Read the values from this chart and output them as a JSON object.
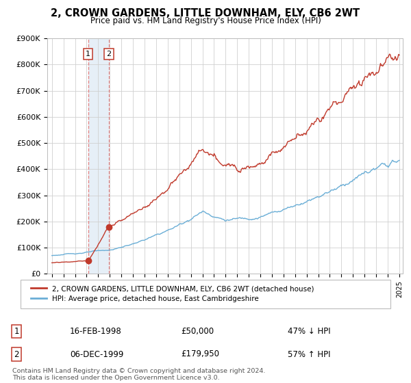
{
  "title": "2, CROWN GARDENS, LITTLE DOWNHAM, ELY, CB6 2WT",
  "subtitle": "Price paid vs. HM Land Registry's House Price Index (HPI)",
  "ylim": [
    0,
    900000
  ],
  "yticks": [
    0,
    100000,
    200000,
    300000,
    400000,
    500000,
    600000,
    700000,
    800000,
    900000
  ],
  "ytick_labels": [
    "£0",
    "£100K",
    "£200K",
    "£300K",
    "£400K",
    "£500K",
    "£600K",
    "£700K",
    "£800K",
    "£900K"
  ],
  "hpi_color": "#6aaed6",
  "price_color": "#c0392b",
  "marker_color": "#c0392b",
  "grid_color": "#d0d0d0",
  "background_color": "#ffffff",
  "legend_label_price": "2, CROWN GARDENS, LITTLE DOWNHAM, ELY, CB6 2WT (detached house)",
  "legend_label_hpi": "HPI: Average price, detached house, East Cambridgeshire",
  "sale1_date": "16-FEB-1998",
  "sale1_price": "£50,000",
  "sale1_hpi": "47% ↓ HPI",
  "sale1_year": 1998.12,
  "sale1_value": 50000,
  "sale2_date": "06-DEC-1999",
  "sale2_price": "£179,950",
  "sale2_hpi": "57% ↑ HPI",
  "sale2_year": 1999.92,
  "sale2_value": 179950,
  "footer": "Contains HM Land Registry data © Crown copyright and database right 2024.\nThis data is licensed under the Open Government Licence v3.0.",
  "xlim_start": 1994.6,
  "xlim_end": 2025.3
}
